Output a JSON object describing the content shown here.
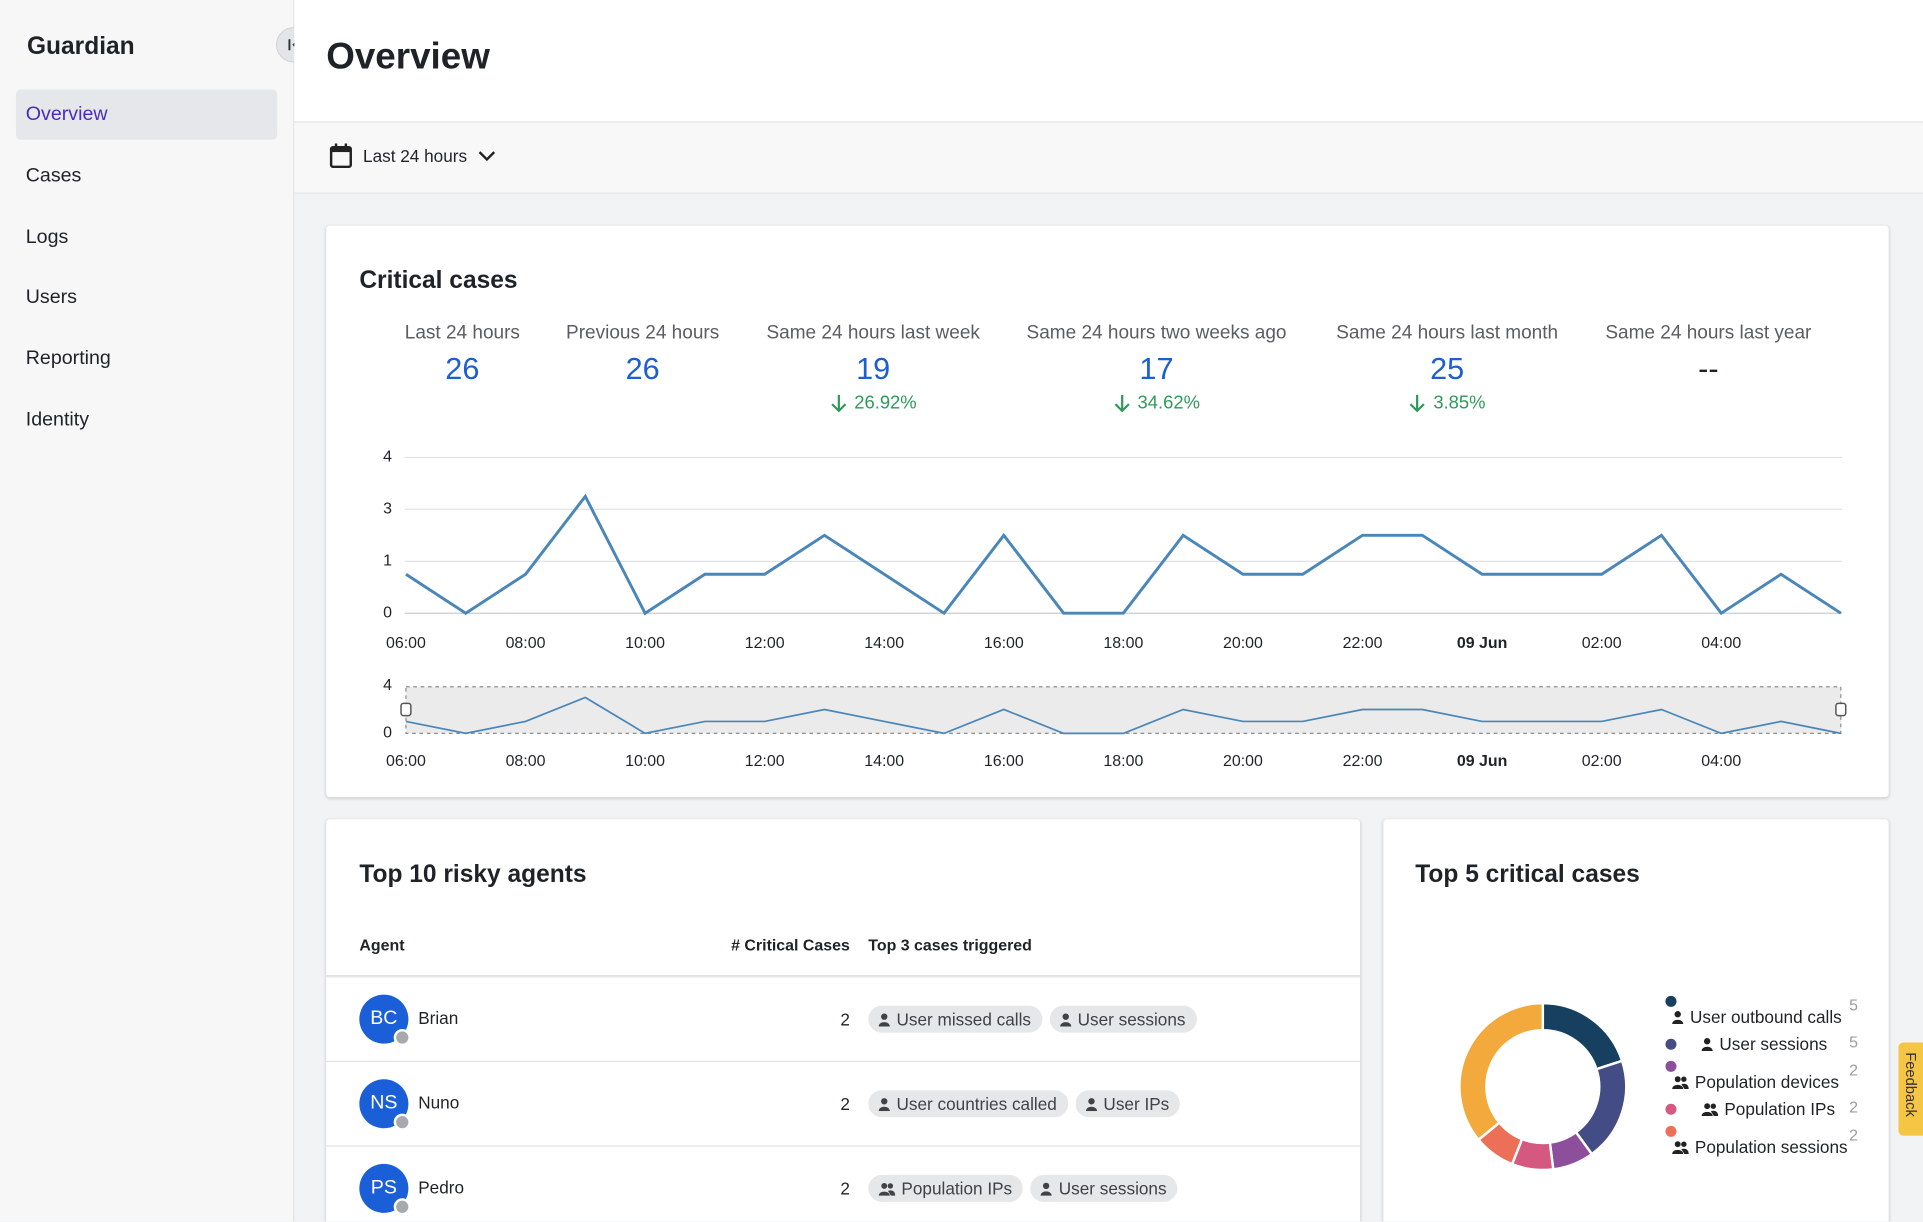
{
  "sidebar": {
    "title": "Guardian",
    "nav": [
      "Overview",
      "Cases",
      "Logs",
      "Users",
      "Reporting",
      "Identity"
    ],
    "active": 0
  },
  "header": {
    "title": "Overview",
    "filter": "Last 24 hours"
  },
  "critical": {
    "title": "Critical cases",
    "stats": [
      {
        "label": "Last 24 hours",
        "value": "26"
      },
      {
        "label": "Previous 24 hours",
        "value": "26"
      },
      {
        "label": "Same 24 hours last week",
        "value": "19",
        "change": "26.92%"
      },
      {
        "label": "Same 24 hours two weeks ago",
        "value": "17",
        "change": "34.62%"
      },
      {
        "label": "Same 24 hours last month",
        "value": "25",
        "change": "3.85%"
      },
      {
        "label": "Same 24 hours last year",
        "value": "--"
      }
    ]
  },
  "chart_data": [
    {
      "type": "line",
      "color": "#4a86b8",
      "categories": [
        "06:00",
        null,
        "08:00",
        null,
        "10:00",
        null,
        "12:00",
        null,
        "14:00",
        null,
        "16:00",
        null,
        "18:00",
        null,
        "20:00",
        null,
        "22:00",
        null,
        "09 Jun",
        null,
        "02:00",
        null,
        "04:00",
        null,
        null
      ],
      "values": [
        1,
        0,
        1,
        3,
        0,
        1,
        1,
        2,
        1,
        0,
        2,
        0,
        0,
        2,
        1,
        1,
        2,
        2,
        1,
        1,
        1,
        2,
        0,
        1,
        0
      ],
      "ylim": [
        0,
        4
      ],
      "yticks": [
        0,
        {
          "value": 1.33,
          "label": "1"
        },
        {
          "value": 2.67,
          "label": "3"
        },
        4
      ],
      "grid": true
    },
    {
      "type": "line",
      "color": "#4a86b8",
      "brush": true,
      "categories": [
        "06:00",
        null,
        "08:00",
        null,
        "10:00",
        null,
        "12:00",
        null,
        "14:00",
        null,
        "16:00",
        null,
        "18:00",
        null,
        "20:00",
        null,
        "22:00",
        null,
        "09 Jun",
        null,
        "02:00",
        null,
        "04:00",
        null,
        null
      ],
      "values": [
        1,
        0,
        1,
        3,
        0,
        1,
        1,
        2,
        1,
        0,
        2,
        0,
        0,
        2,
        1,
        1,
        2,
        2,
        1,
        1,
        1,
        2,
        0,
        1,
        0
      ],
      "ylim": [
        0,
        4
      ],
      "yticks": [
        0,
        4
      ],
      "grid": false
    },
    {
      "type": "pie",
      "title": "Top 5 critical cases",
      "donut": true,
      "labels": [
        "User outbound calls",
        "User sessions",
        "Population devices",
        "Population IPs",
        "Population sessions",
        null
      ],
      "icons": [
        "user",
        "user",
        "population",
        "population",
        "population",
        null
      ],
      "values": [
        5,
        5,
        2,
        2,
        2,
        9
      ],
      "colors": [
        "#173f5f",
        "#444c85",
        "#8d4f9c",
        "#d4587f",
        "#ec7058",
        "#f3a93c"
      ]
    }
  ],
  "agents": {
    "title": "Top 10 risky agents",
    "columns": [
      "Agent",
      "# Critical Cases",
      "Top 3 cases triggered"
    ],
    "rows": [
      {
        "initials": "BC",
        "name": "Brian",
        "cases": "2",
        "tags": [
          {
            "icon": "user",
            "label": "User missed calls"
          },
          {
            "icon": "user",
            "label": "User sessions"
          }
        ]
      },
      {
        "initials": "NS",
        "name": "Nuno",
        "cases": "2",
        "tags": [
          {
            "icon": "user",
            "label": "User countries called"
          },
          {
            "icon": "user",
            "label": "User IPs"
          }
        ]
      },
      {
        "initials": "PS",
        "name": "Pedro",
        "cases": "2",
        "tags": [
          {
            "icon": "population",
            "label": "Population IPs"
          },
          {
            "icon": "user",
            "label": "User sessions"
          }
        ]
      }
    ]
  },
  "feedback": "Feedback"
}
